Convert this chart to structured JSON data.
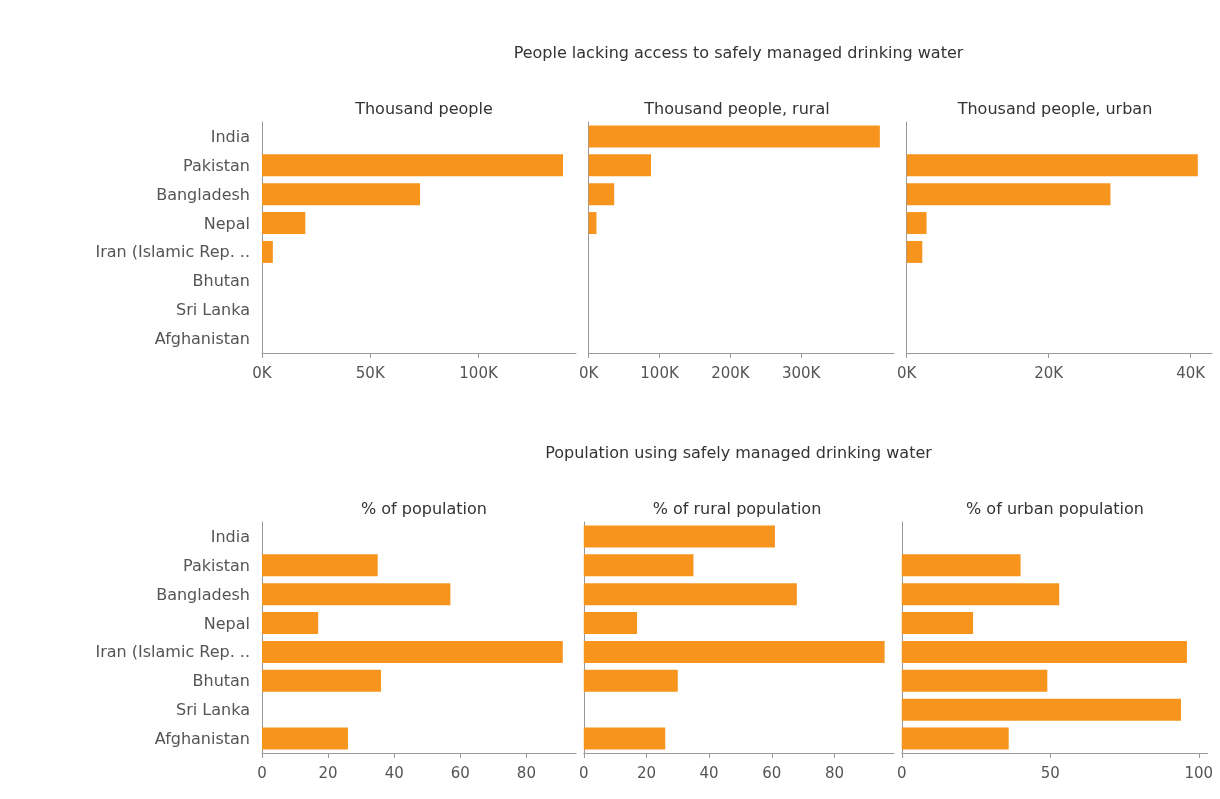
{
  "chart_data": [
    {
      "type": "bar",
      "orientation": "horizontal",
      "subtitle": "Thousand people",
      "categories": [
        "India",
        "Pakistan",
        "Bangladesh",
        "Nepal",
        "Iran (Islamic Rep. ..",
        "Bhutan",
        "Sri Lanka",
        "Afghanistan"
      ],
      "values": [
        null,
        139000,
        73000,
        20000,
        5000,
        0,
        0,
        0
      ],
      "color": "#f7941d",
      "xlim": [
        0,
        145000
      ],
      "xticks": [
        {
          "value": 0,
          "label": "0K"
        },
        {
          "value": 50000,
          "label": "50K"
        },
        {
          "value": 100000,
          "label": "100K"
        }
      ]
    },
    {
      "type": "bar",
      "orientation": "horizontal",
      "title": "People lacking access to safely managed drinking water",
      "subtitle": "Thousand people, rural",
      "values": [
        411000,
        88000,
        36000,
        11000,
        0,
        0,
        0,
        0
      ],
      "color": "#f7941d",
      "xlim": [
        0,
        431000
      ],
      "xticks": [
        {
          "value": 0,
          "label": "0K"
        },
        {
          "value": 100000,
          "label": "100K"
        },
        {
          "value": 200000,
          "label": "200K"
        },
        {
          "value": 300000,
          "label": "300K"
        }
      ],
      "tick_labels": "x"
    },
    {
      "type": "bar",
      "orientation": "horizontal",
      "subtitle": "Thousand people, urban",
      "values": [
        null,
        41000,
        28700,
        2800,
        2200,
        0,
        0,
        0
      ],
      "color": "#f7941d",
      "xlim": [
        0,
        43000
      ],
      "xticks": [
        {
          "value": 0,
          "label": "0K"
        },
        {
          "value": 20000,
          "label": "20K"
        },
        {
          "value": 40000,
          "label": "40K"
        }
      ],
      "tick_labels": "x"
    },
    {
      "type": "bar",
      "orientation": "horizontal",
      "subtitle": "% of population",
      "categories": [
        "India",
        "Pakistan",
        "Bangladesh",
        "Nepal",
        "Iran (Islamic Rep. ..",
        "Bhutan",
        "Sri Lanka",
        "Afghanistan"
      ],
      "values": [
        null,
        35,
        57,
        17,
        91,
        36,
        null,
        26
      ],
      "color": "#f7941d",
      "xlim": [
        0,
        95
      ],
      "xticks": [
        0,
        20,
        40,
        60,
        80
      ]
    },
    {
      "type": "bar",
      "orientation": "horizontal",
      "title": "Population using safely managed drinking water",
      "subtitle": "% of rural population",
      "values": [
        61,
        35,
        68,
        17,
        96,
        30,
        null,
        26
      ],
      "color": "#f7941d",
      "xlim": [
        0,
        99
      ],
      "xticks": [
        0,
        20,
        40,
        60,
        80
      ],
      "tick_labels": "x"
    },
    {
      "type": "bar",
      "orientation": "horizontal",
      "subtitle": "% of urban population",
      "values": [
        null,
        40,
        53,
        24,
        96,
        49,
        94,
        36
      ],
      "color": "#f7941d",
      "xlim": [
        0,
        103
      ],
      "xticks": [
        0,
        50,
        100
      ],
      "tick_labels": "x"
    }
  ]
}
